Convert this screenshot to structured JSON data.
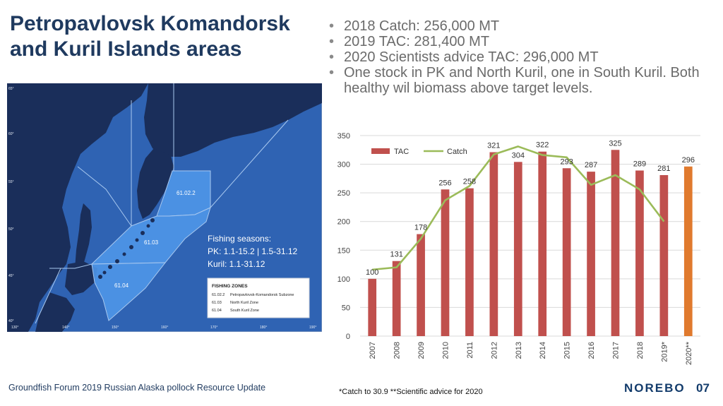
{
  "title": "Petropavlovsk Komandorsk and Kuril Islands areas",
  "bullets": [
    "2018 Catch: 256,000 MT",
    "2019 TAC: 281,400 MT",
    "2020 Scientists advice TAC: 296,000 MT",
    "One stock in PK and North Kuril, one in South Kuril. Both healthy wil biomass above target levels."
  ],
  "map": {
    "seasons_title": "Fishing seasons:",
    "seasons_line1": "PK: 1.1-15.2 | 1.5-31.12",
    "seasons_line2": "Kuril: 1.1-31.12",
    "zones_title": "FISHING ZONES",
    "zones": [
      {
        "code": "61.02.2",
        "name": "Petropavlovsk-Komandorsk Subzone"
      },
      {
        "code": "61.03",
        "name": "North Kuril Zone"
      },
      {
        "code": "61.04",
        "name": "South Kuril Zone"
      }
    ],
    "lat_labels": [
      "65°",
      "60°",
      "55°",
      "50°",
      "45°",
      "40°"
    ],
    "lon_labels": [
      "130°",
      "140°",
      "150°",
      "160°",
      "170°",
      "180°",
      "190°"
    ],
    "colors": {
      "sea": "#2f63b3",
      "land": "#1a2e5a",
      "zone": "#4f96e8"
    }
  },
  "chart_data": {
    "type": "bar",
    "categories": [
      "2007",
      "2008",
      "2009",
      "2010",
      "2011",
      "2012",
      "2013",
      "2014",
      "2015",
      "2016",
      "2017",
      "2018",
      "2019*",
      "2020**"
    ],
    "series": [
      {
        "name": "TAC",
        "type": "bar",
        "color": "#c0504d",
        "highlight_color": "#e07a2e",
        "highlight_index": 13,
        "values": [
          100,
          131,
          178,
          256,
          258,
          321,
          304,
          322,
          293,
          287,
          325,
          289,
          281,
          296
        ]
      },
      {
        "name": "Catch",
        "type": "line",
        "color": "#9bbb59",
        "values": [
          116,
          120,
          170,
          237,
          262,
          317,
          331,
          316,
          312,
          264,
          281,
          256,
          200,
          null
        ]
      }
    ],
    "data_labels": [
      "100",
      "131",
      "178",
      "256",
      "258",
      "321",
      "304",
      "322",
      "293",
      "287",
      "325",
      "289",
      "281",
      "296"
    ],
    "y_ticks": [
      "0",
      "50",
      "100",
      "150",
      "200",
      "250",
      "300",
      "350"
    ],
    "ylim": [
      0,
      350
    ],
    "legend": "top-left",
    "grid": true
  },
  "footer": "Groundfish Forum 2019 Russian Alaska pollock Resource Update",
  "note": "*Catch to 30.9  **Scientific advice for 2020",
  "logo": "NOREBO",
  "page_number": "07"
}
